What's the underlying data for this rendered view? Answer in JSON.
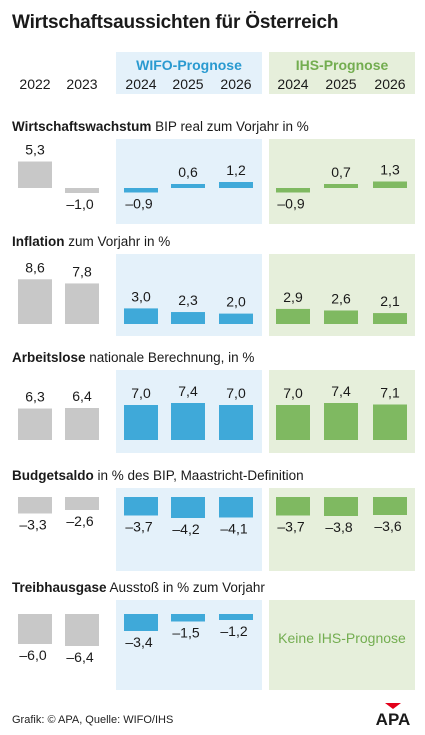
{
  "title": "Wirtschaftsaussichten für Österreich",
  "colors": {
    "historic": "#c8c8c8",
    "wifo_bar": "#3fa9d9",
    "wifo_bg": "#e4f1fa",
    "ihs_bar": "#7fb961",
    "ihs_bg": "#e6efdb",
    "wifo_head": "#2a9ad0",
    "ihs_head": "#73ad50"
  },
  "groups": {
    "historic": {
      "years": [
        "2022",
        "2023"
      ]
    },
    "wifo": {
      "label": "WIFO-Prognose",
      "years": [
        "2024",
        "2025",
        "2026"
      ]
    },
    "ihs": {
      "label": "IHS-Prognose",
      "years": [
        "2024",
        "2025",
        "2026"
      ]
    }
  },
  "chart_data": [
    {
      "type": "bar",
      "title_bold": "Wirtschaftswachstum",
      "title_rest": " BIP real zum Vorjahr in %",
      "historic": {
        "values": [
          5.3,
          -1.0
        ],
        "labels": [
          "5,3",
          "–1,0"
        ]
      },
      "wifo": {
        "values": [
          -0.9,
          0.6,
          1.2
        ],
        "labels": [
          "–0,9",
          "0,6",
          "1,2"
        ]
      },
      "ihs": {
        "values": [
          -0.9,
          0.7,
          1.3
        ],
        "labels": [
          "–0,9",
          "0,7",
          "1,3"
        ]
      }
    },
    {
      "type": "bar",
      "title_bold": "Inflation",
      "title_rest": " zum Vorjahr in %",
      "historic": {
        "values": [
          8.6,
          7.8
        ],
        "labels": [
          "8,6",
          "7,8"
        ]
      },
      "wifo": {
        "values": [
          3.0,
          2.3,
          2.0
        ],
        "labels": [
          "3,0",
          "2,3",
          "2,0"
        ]
      },
      "ihs": {
        "values": [
          2.9,
          2.6,
          2.1
        ],
        "labels": [
          "2,9",
          "2,6",
          "2,1"
        ]
      }
    },
    {
      "type": "bar",
      "title_bold": "Arbeitslose",
      "title_rest": " nationale Berechnung, in %",
      "historic": {
        "values": [
          6.3,
          6.4
        ],
        "labels": [
          "6,3",
          "6,4"
        ]
      },
      "wifo": {
        "values": [
          7.0,
          7.4,
          7.0
        ],
        "labels": [
          "7,0",
          "7,4",
          "7,0"
        ]
      },
      "ihs": {
        "values": [
          7.0,
          7.4,
          7.1
        ],
        "labels": [
          "7,0",
          "7,4",
          "7,1"
        ]
      }
    },
    {
      "type": "bar",
      "title_bold": "Budgetsaldo",
      "title_rest": " in % des BIP, Maastricht-Definition",
      "historic": {
        "values": [
          -3.3,
          -2.6
        ],
        "labels": [
          "–3,3",
          "–2,6"
        ]
      },
      "wifo": {
        "values": [
          -3.7,
          -4.2,
          -4.1
        ],
        "labels": [
          "–3,7",
          "–4,2",
          "–4,1"
        ]
      },
      "ihs": {
        "values": [
          -3.7,
          -3.8,
          -3.6
        ],
        "labels": [
          "–3,7",
          "–3,8",
          "–3,6"
        ]
      }
    },
    {
      "type": "bar",
      "title_bold": "Treibhausgase",
      "title_rest": " Ausstoß in % zum Vorjahr",
      "historic": {
        "values": [
          -6.0,
          -6.4
        ],
        "labels": [
          "–6,0",
          "–6,4"
        ]
      },
      "wifo": {
        "values": [
          -3.4,
          -1.5,
          -1.2
        ],
        "labels": [
          "–3,4",
          "–1,5",
          "–1,2"
        ]
      },
      "ihs": {
        "values": null,
        "labels": null,
        "note": "Keine IHS-Prognose"
      }
    }
  ],
  "footer": {
    "source": "Grafik: © APA, Quelle: WIFO/IHS",
    "logo": "APA"
  }
}
